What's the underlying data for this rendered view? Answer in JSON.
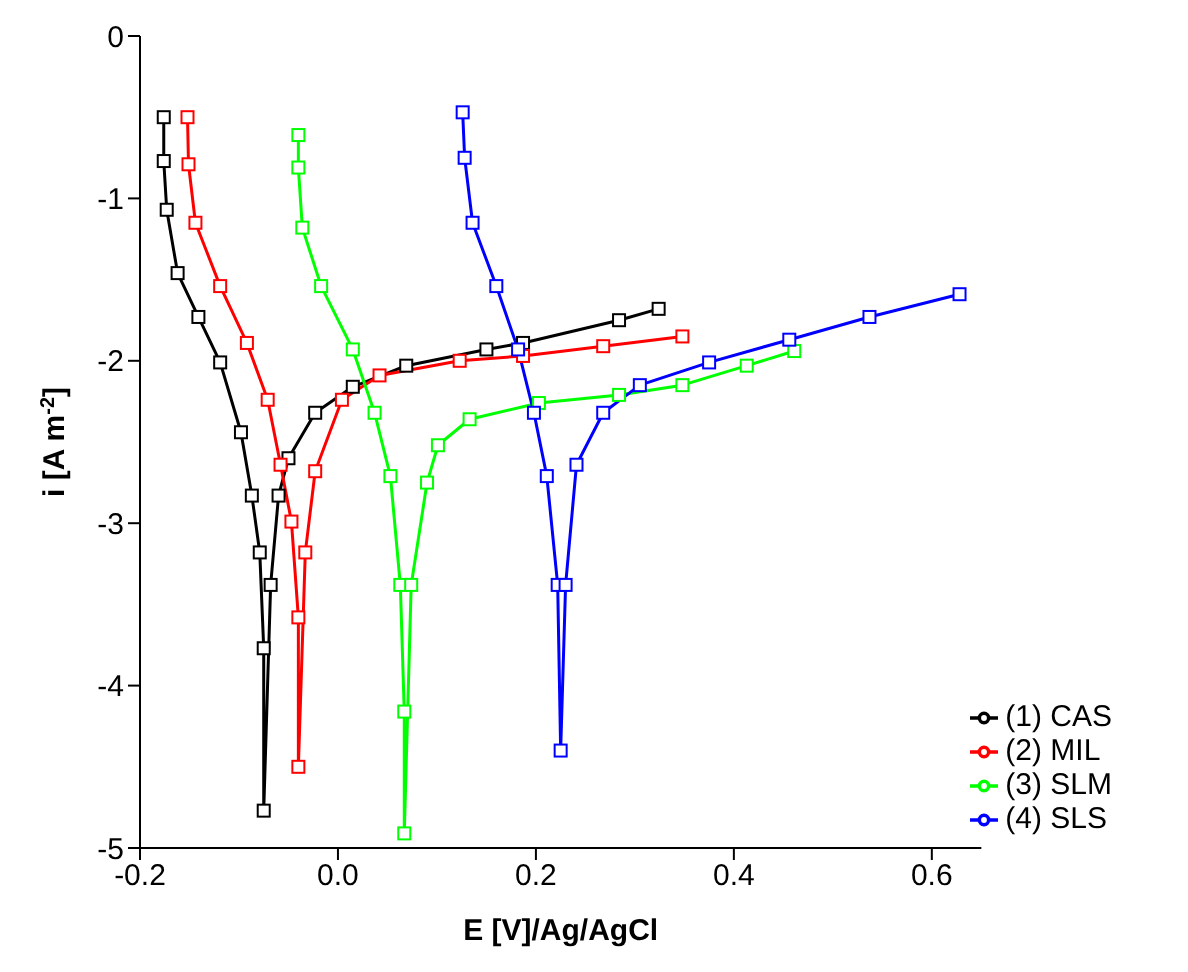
{
  "chart_data": {
    "type": "line",
    "xlabel": "E [V]/Ag/AgCl",
    "ylabel": "i [A m$^{-2}$]",
    "xlim": [
      -0.2,
      0.65
    ],
    "xticks": [
      -0.2,
      {
        "value": 0,
        "label": "0.0"
      },
      0.2,
      0.4,
      0.6
    ],
    "ylim": [
      -5,
      0
    ],
    "yticks": [
      0,
      -1,
      -2,
      -3,
      -4,
      -5
    ],
    "grid": false,
    "legend": "bottom right",
    "marker": "square",
    "line_style": "solid",
    "series": [
      {
        "name": "(1) CAS",
        "color": "#000000",
        "x": [
          -0.176,
          -0.176,
          -0.173,
          -0.162,
          -0.141,
          -0.119,
          -0.098,
          -0.087,
          -0.079,
          -0.075,
          -0.075,
          -0.068,
          -0.06,
          -0.05,
          -0.023,
          0.015,
          0.069,
          0.15,
          0.187,
          0.284,
          0.324
        ],
        "values": [
          -0.5,
          -0.77,
          -1.07,
          -1.46,
          -1.73,
          -2.01,
          -2.44,
          -2.83,
          -3.18,
          -3.77,
          -4.77,
          -3.38,
          -2.83,
          -2.6,
          -2.32,
          -2.16,
          -2.03,
          -1.93,
          -1.89,
          -1.75,
          -1.68
        ]
      },
      {
        "name": "(2) MIL",
        "color": "#ff0000",
        "x": [
          -0.152,
          -0.151,
          -0.144,
          -0.119,
          -0.092,
          -0.071,
          -0.058,
          -0.047,
          -0.04,
          -0.04,
          -0.033,
          -0.023,
          0.004,
          0.042,
          0.123,
          0.187,
          0.268,
          0.348
        ],
        "values": [
          -0.5,
          -0.79,
          -1.15,
          -1.54,
          -1.89,
          -2.24,
          -2.64,
          -2.99,
          -3.58,
          -4.5,
          -3.18,
          -2.68,
          -2.24,
          -2.09,
          -2.0,
          -1.97,
          -1.91,
          -1.85
        ]
      },
      {
        "name": "(3) SLM",
        "color": "#00ff00",
        "x": [
          -0.04,
          -0.04,
          -0.036,
          -0.017,
          0.015,
          0.037,
          0.053,
          0.063,
          0.067,
          0.067,
          0.074,
          0.09,
          0.101,
          0.133,
          0.203,
          0.284,
          0.348,
          0.413,
          0.461
        ],
        "values": [
          -0.61,
          -0.81,
          -1.18,
          -1.54,
          -1.93,
          -2.32,
          -2.71,
          -3.38,
          -4.16,
          -4.91,
          -3.38,
          -2.75,
          -2.52,
          -2.36,
          -2.26,
          -2.21,
          -2.15,
          -2.03,
          -1.94
        ]
      },
      {
        "name": "(4) SLS",
        "color": "#0000ff",
        "x": [
          0.126,
          0.128,
          0.136,
          0.16,
          0.182,
          0.198,
          0.211,
          0.222,
          0.225,
          0.23,
          0.241,
          0.268,
          0.305,
          0.375,
          0.456,
          0.537,
          0.628
        ],
        "values": [
          -0.47,
          -0.75,
          -1.15,
          -1.54,
          -1.93,
          -2.32,
          -2.71,
          -3.38,
          -4.4,
          -3.38,
          -2.64,
          -2.32,
          -2.15,
          -2.01,
          -1.87,
          -1.73,
          -1.59
        ]
      }
    ]
  }
}
